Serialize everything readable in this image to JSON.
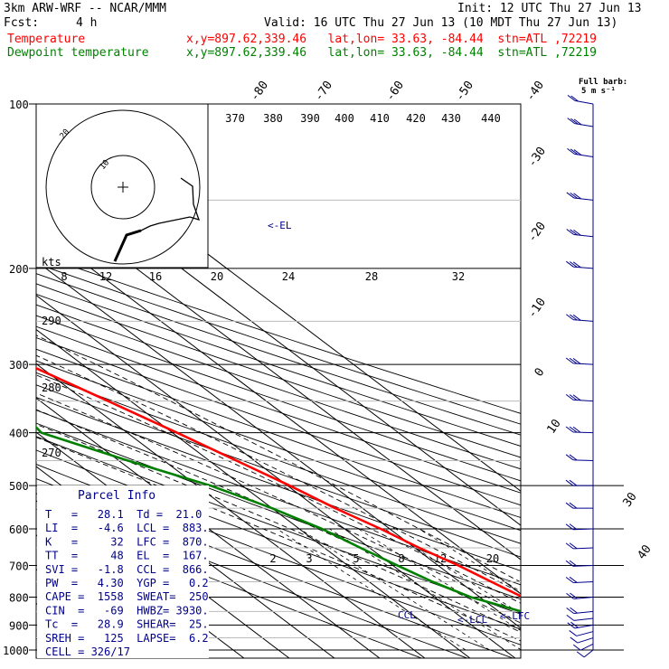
{
  "header": {
    "model": "3km ARW-WRF -- NCAR/MMM",
    "init": "Init: 12 UTC Thu 27 Jun 13",
    "fcst_label": "Fcst:",
    "fcst_value": "4 h",
    "valid": "Valid: 16 UTC Thu 27 Jun 13 (10 MDT Thu 27 Jun 13)",
    "temp_label": "Temperature",
    "temp_info": "x,y=897.62,339.46   lat,lon= 33.63, -84.44  stn=ATL ,72219",
    "dew_label": "Dewpoint temperature",
    "dew_info": "x,y=897.62,339.46   lat,lon= 33.63, -84.44  stn=ATL ,72219"
  },
  "colors": {
    "temperature": "#ff0000",
    "dewpoint": "#008000",
    "parcel_text": "#00008b",
    "axis": "#000000"
  },
  "barb_legend": {
    "line1": "Full barb:",
    "line2": "5 m s⁻¹"
  },
  "pressure_ticks": [
    "100",
    "200",
    "300",
    "400",
    "500",
    "600",
    "700",
    "800",
    "900",
    "1000"
  ],
  "temp_ticks_top": [
    "-80",
    "-70",
    "-60",
    "-50",
    "-40"
  ],
  "temp_ticks_right": [
    "-30",
    "-20",
    "-10",
    "0",
    "10",
    "30",
    "40"
  ],
  "theta_top_labels": [
    "370",
    "380",
    "390",
    "400",
    "410",
    "420",
    "430",
    "440"
  ],
  "theta_left_labels": [
    "290",
    "280",
    "270"
  ],
  "mixing_ratio_labels": [
    "2",
    "3",
    "5",
    "8",
    "12",
    "20"
  ],
  "hodograph": {
    "units": "kts",
    "rings": [
      "8",
      "12",
      "16",
      "20",
      "24",
      "28",
      "32"
    ]
  },
  "annotations": {
    "el": "<-EL",
    "ccl": "CCL",
    "lcl": "<-LCL",
    "lfc": "<-LFC"
  },
  "parcel_info": {
    "title": "Parcel Info",
    "rows": [
      "T   =   28.1  Td =  21.0",
      "LI  =   -4.6  LCL =  883.",
      "K   =     32  LFC =  870.",
      "TT  =     48  EL  =  167.",
      "SVI =   -1.8  CCL =  866.",
      "PW  =   4.30  YGP =   0.2",
      "CAPE =  1558  SWEAT=  250",
      "CIN  =   -69  HWBZ= 3930.",
      "Tc  =   28.9  SHEAR=  25.",
      "SREH =   125  LAPSE=  6.2",
      "CELL = 326/17"
    ]
  },
  "chart_data": {
    "type": "line",
    "title": "Skew-T log-P sounding",
    "xlabel": "",
    "ylabel": "",
    "y_scale": "log",
    "ylim": [
      1000,
      100
    ],
    "series": [
      {
        "name": "Temperature",
        "color": "#ff0000",
        "points": [
          [
            969,
            29
          ],
          [
            930,
            26
          ],
          [
            900,
            23.5
          ],
          [
            870,
            22.5
          ],
          [
            850,
            21.5
          ],
          [
            800,
            19.5
          ],
          [
            750,
            17
          ],
          [
            700,
            14.5
          ],
          [
            650,
            11
          ],
          [
            600,
            8
          ],
          [
            550,
            4
          ],
          [
            500,
            0.5
          ],
          [
            450,
            -4
          ],
          [
            400,
            -9
          ],
          [
            350,
            -15
          ],
          [
            300,
            -22
          ],
          [
            250,
            -31
          ],
          [
            220,
            -39
          ],
          [
            200,
            -45
          ],
          [
            180,
            -51
          ],
          [
            150,
            -61
          ],
          [
            130,
            -63
          ],
          [
            115,
            -60
          ],
          [
            100,
            -57
          ]
        ]
      },
      {
        "name": "Dewpoint temperature",
        "color": "#008000",
        "points": [
          [
            969,
            21
          ],
          [
            930,
            21
          ],
          [
            900,
            21
          ],
          [
            870,
            19.5
          ],
          [
            850,
            15
          ],
          [
            800,
            8
          ],
          [
            750,
            4
          ],
          [
            700,
            1
          ],
          [
            650,
            -2
          ],
          [
            600,
            -5
          ],
          [
            550,
            -10
          ],
          [
            500,
            -17
          ],
          [
            450,
            -28
          ],
          [
            400,
            -39
          ],
          [
            380,
            -38
          ],
          [
            350,
            -33
          ],
          [
            330,
            -31
          ],
          [
            300,
            -34
          ],
          [
            270,
            -36
          ],
          [
            245,
            -43
          ],
          [
            220,
            -56
          ],
          [
            200,
            -63
          ],
          [
            180,
            -68
          ],
          [
            150,
            -75
          ],
          [
            120,
            -80
          ],
          [
            100,
            -81
          ]
        ]
      }
    ],
    "hodograph_trace": [
      [
        0,
        0
      ],
      [
        3,
        4
      ],
      [
        6,
        9
      ],
      [
        9,
        12
      ],
      [
        13,
        13
      ],
      [
        17,
        14
      ],
      [
        21,
        15
      ],
      [
        25,
        18
      ],
      [
        27,
        22
      ],
      [
        30,
        26
      ],
      [
        29,
        34
      ],
      [
        33,
        38
      ]
    ],
    "wind_barbs": [
      {
        "p": 1000,
        "u": -3,
        "v": -6
      },
      {
        "p": 975,
        "u": -4,
        "v": -5
      },
      {
        "p": 950,
        "u": -5,
        "v": -4
      },
      {
        "p": 925,
        "u": -6,
        "v": -4
      },
      {
        "p": 900,
        "u": -7,
        "v": -3
      },
      {
        "p": 875,
        "u": -7,
        "v": -2
      },
      {
        "p": 850,
        "u": -8,
        "v": -2
      },
      {
        "p": 800,
        "u": -9,
        "v": -2
      },
      {
        "p": 750,
        "u": -9,
        "v": -1
      },
      {
        "p": 700,
        "u": -10,
        "v": -1
      },
      {
        "p": 650,
        "u": -10,
        "v": -1
      },
      {
        "p": 600,
        "u": -11,
        "v": -1
      },
      {
        "p": 550,
        "u": -11,
        "v": 0
      },
      {
        "p": 500,
        "u": -12,
        "v": 0
      },
      {
        "p": 450,
        "u": -12,
        "v": 1
      },
      {
        "p": 400,
        "u": -13,
        "v": 1
      },
      {
        "p": 350,
        "u": -14,
        "v": 2
      },
      {
        "p": 300,
        "u": -15,
        "v": 2
      },
      {
        "p": 250,
        "u": -16,
        "v": 3
      },
      {
        "p": 200,
        "u": -16,
        "v": 3
      },
      {
        "p": 175,
        "u": -15,
        "v": 4
      },
      {
        "p": 150,
        "u": -14,
        "v": 4
      },
      {
        "p": 125,
        "u": -13,
        "v": 5
      },
      {
        "p": 110,
        "u": -12,
        "v": 5
      },
      {
        "p": 100,
        "u": -11,
        "v": 5
      }
    ]
  }
}
